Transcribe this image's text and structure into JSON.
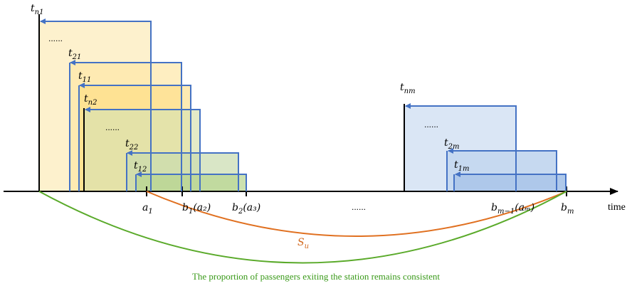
{
  "axis": {
    "label": "time"
  },
  "left_group": {
    "time_labels": [
      {
        "base": "t",
        "sub": "n1"
      },
      {
        "base": "t",
        "sub": "21"
      },
      {
        "base": "t",
        "sub": "11"
      },
      {
        "base": "t",
        "sub": "n2"
      },
      {
        "base": "t",
        "sub": "22"
      },
      {
        "base": "t",
        "sub": "12"
      }
    ],
    "ellipses": [
      "......",
      "......"
    ]
  },
  "right_group": {
    "time_labels": [
      {
        "base": "t",
        "sub": "nm"
      },
      {
        "base": "t",
        "sub": "2m"
      },
      {
        "base": "t",
        "sub": "1m"
      }
    ],
    "ellipses": [
      "......"
    ]
  },
  "axis_marks": [
    {
      "text": "a",
      "sub": "1",
      "suffix": ""
    },
    {
      "text": "b",
      "sub": "1",
      "suffix": "(a₂)"
    },
    {
      "text": "b",
      "sub": "2",
      "suffix": "(a₃)"
    },
    {
      "text": "b",
      "sub": "m−1",
      "suffix": "(aₘ)"
    },
    {
      "text": "b",
      "sub": "m",
      "suffix": ""
    }
  ],
  "middle_ellipsis": "......",
  "arc_label": {
    "base": "S",
    "sub": "u"
  },
  "caption": "The proportion of passengers exiting the station remains consistent",
  "colors": {
    "arrow_blue": "#4472c4",
    "arc_orange": "#e07020",
    "arc_green": "#5aaa2a",
    "yellow_fill": "#fde9a8",
    "green_fill": "#d5e8c0",
    "blue_fill": "#c9dcf2"
  }
}
